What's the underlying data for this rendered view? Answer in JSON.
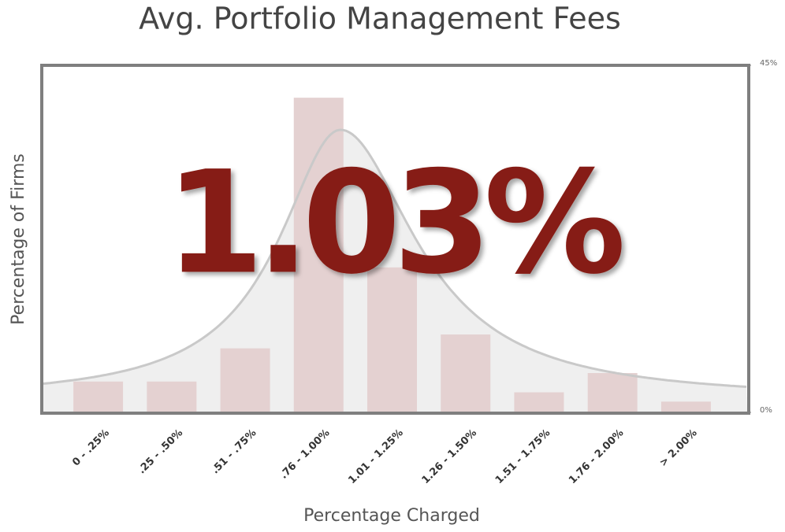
{
  "chart_data": {
    "type": "bar",
    "title": "Avg. Portfolio Management Fees",
    "x_label": "Percentage Charged",
    "y_label": "Percentage of Firms",
    "annotation": "1.03%",
    "categories": [
      "0 - .25%",
      ".25 - .50%",
      ".51 - .75%",
      ".76 - 1.00%",
      "1.01 - 1.25%",
      "1.26 - 1.50%",
      "1.51 - 1.75%",
      "1.76 - 2.00%",
      "> 2.00%"
    ],
    "values": [
      4.0,
      4.0,
      8.3,
      40.8,
      18.8,
      10.1,
      2.6,
      5.1,
      1.4
    ],
    "color": "#e4d1d1",
    "ylim": [
      0,
      45
    ],
    "yticks": [
      {
        "value": 0,
        "label": "0%"
      },
      {
        "value": 45,
        "label": "45%"
      }
    ],
    "grid": false
  }
}
